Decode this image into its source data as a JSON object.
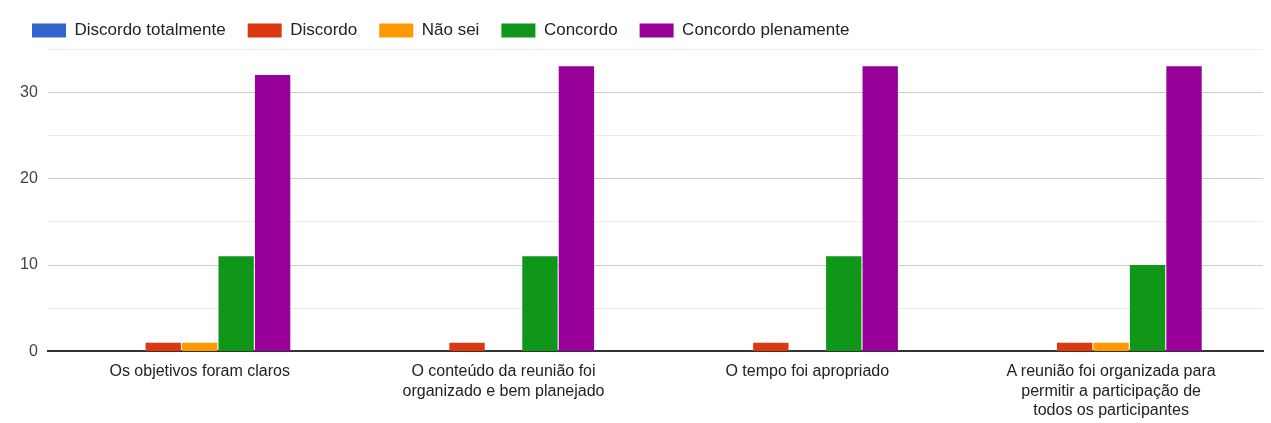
{
  "chart_data": {
    "type": "bar",
    "categories": [
      "Os objetivos foram claros",
      "O conteúdo da reunião foi organizado e bem planejado",
      "O tempo foi apropriado",
      "A reunião foi organizada para permitir a participação de todos os participantes"
    ],
    "series": [
      {
        "name": "Discordo totalmente",
        "color": "#3366cc",
        "values": [
          0,
          0,
          0,
          0
        ]
      },
      {
        "name": "Discordo",
        "color": "#dc3912",
        "values": [
          1,
          1,
          1,
          1
        ]
      },
      {
        "name": "Não sei",
        "color": "#ff9900",
        "values": [
          1,
          0,
          0,
          1
        ]
      },
      {
        "name": "Concordo",
        "color": "#109618",
        "values": [
          11,
          11,
          11,
          10
        ]
      },
      {
        "name": "Concordo plenamente",
        "color": "#990099",
        "values": [
          32,
          33,
          33,
          33
        ]
      }
    ],
    "ylim": [
      0,
      35
    ],
    "yticks": [
      0,
      {
        "value": 5,
        "label": null
      },
      10,
      {
        "value": 15,
        "label": null
      },
      20,
      {
        "value": 25,
        "label": null
      },
      30,
      {
        "value": 35,
        "label": null
      }
    ],
    "grid": "y",
    "legend": "top"
  }
}
